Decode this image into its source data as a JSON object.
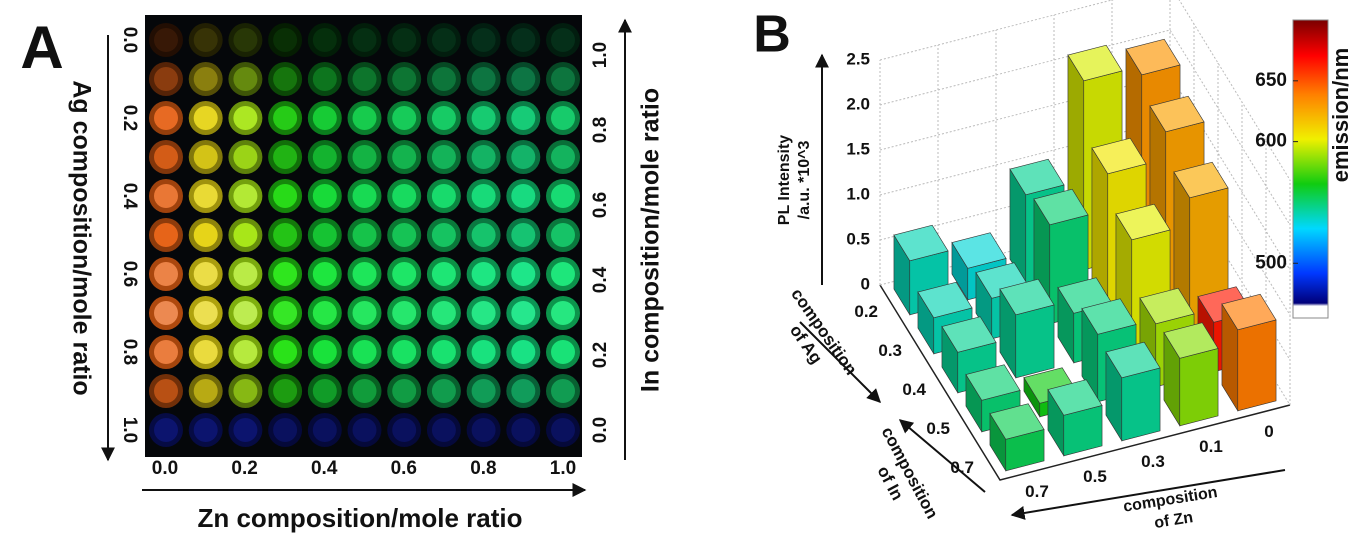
{
  "chart_data": [
    {
      "type": "plate",
      "label": "A",
      "x_label": "Zn composition/mole ratio",
      "y_label": "Ag composition/mole ratio",
      "y2_label": "In composition/mole ratio",
      "xlim": [
        0,
        1
      ],
      "xticks": [
        {
          "value": 0,
          "label": "0.0"
        },
        0.2,
        0.4,
        0.6,
        0.8,
        {
          "value": 1,
          "label": "1.0"
        }
      ],
      "ylim": [
        0,
        1
      ],
      "yticks": [
        {
          "value": 0,
          "label": "0.0"
        },
        0.2,
        0.4,
        0.6,
        0.8,
        {
          "value": 1,
          "label": "1.0"
        }
      ],
      "y2lim": [
        0,
        1
      ],
      "y2ticks": [
        {
          "value": 0,
          "label": "0.0"
        },
        0.2,
        0.4,
        0.6,
        0.8,
        {
          "value": 1,
          "label": "1.0"
        }
      ]
    },
    {
      "type": "bar3d",
      "label": "B",
      "z_label": [
        "PL Intensity",
        "/a.u. *10^3"
      ],
      "x_label": [
        "composition",
        "of Zn"
      ],
      "y_label": [
        "composition",
        "of Ag"
      ],
      "y2_label": [
        "composition",
        "of In"
      ],
      "x_categories": [
        "0.7",
        "0.5",
        "0.3",
        "0.1",
        "0"
      ],
      "y_categories": [
        "0.2",
        "0.3",
        "0.4",
        "0.5",
        "0.7"
      ],
      "zlim": [
        0,
        2.5
      ],
      "zticks": [
        0,
        0.5,
        {
          "value": 1,
          "label": "1.0"
        },
        1.5,
        {
          "value": 2,
          "label": "2.0"
        },
        2.5
      ],
      "values": [
        [
          0.6,
          0.35,
          1.0,
          2.1,
          2.0
        ],
        [
          0.4,
          0.45,
          1.1,
          1.5,
          1.8
        ],
        [
          0.45,
          0.7,
          0.55,
          1.2,
          1.5
        ],
        [
          0.35,
          0.15,
          0.75,
          0.7,
          0.55
        ],
        [
          0.35,
          0.45,
          0.7,
          0.75,
          0.9
        ]
      ],
      "emission": [
        [
          540,
          535,
          545,
          598,
          632
        ],
        [
          540,
          540,
          550,
          605,
          628
        ],
        [
          545,
          545,
          548,
          600,
          625
        ],
        [
          550,
          565,
          548,
          590,
          665
        ],
        [
          555,
          548,
          545,
          585,
          640
        ]
      ],
      "color_label": "emission/nm",
      "clim": [
        455,
        700
      ],
      "cticks": [
        500,
        600,
        650
      ]
    }
  ]
}
